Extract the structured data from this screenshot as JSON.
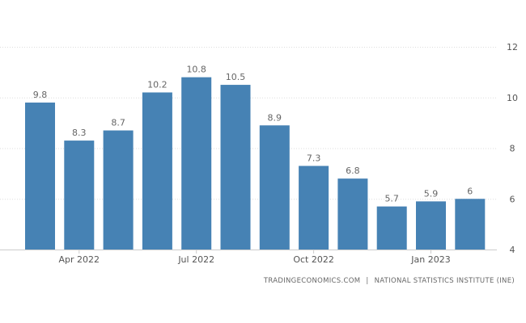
{
  "chart_data": {
    "type": "bar",
    "categories": [
      "Mar 2022",
      "Apr 2022",
      "May 2022",
      "Jun 2022",
      "Jul 2022",
      "Aug 2022",
      "Sep 2022",
      "Oct 2022",
      "Nov 2022",
      "Dec 2022",
      "Jan 2023",
      "Feb 2023"
    ],
    "values": [
      9.8,
      8.3,
      8.7,
      10.2,
      10.8,
      10.5,
      8.9,
      7.3,
      6.8,
      5.7,
      5.9,
      6
    ],
    "value_labels": [
      "9.8",
      "8.3",
      "8.7",
      "10.2",
      "10.8",
      "10.5",
      "8.9",
      "7.3",
      "6.8",
      "5.7",
      "5.9",
      "6"
    ],
    "x_tick_labels": [
      {
        "index": 1,
        "label": "Apr 2022"
      },
      {
        "index": 4,
        "label": "Jul 2022"
      },
      {
        "index": 7,
        "label": "Oct 2022"
      },
      {
        "index": 10,
        "label": "Jan 2023"
      }
    ],
    "y_ticks": [
      4,
      6,
      8,
      10,
      12
    ],
    "ylim": [
      4,
      12
    ],
    "y_axis_side": "right",
    "grid": "horizontal dotted",
    "bar_color": "#4682b4",
    "title": "",
    "xlabel": "",
    "ylabel": ""
  },
  "source": {
    "site": "TRADINGECONOMICS.COM",
    "separator": "|",
    "provider": "NATIONAL STATISTICS INSTITUTE (INE)"
  }
}
